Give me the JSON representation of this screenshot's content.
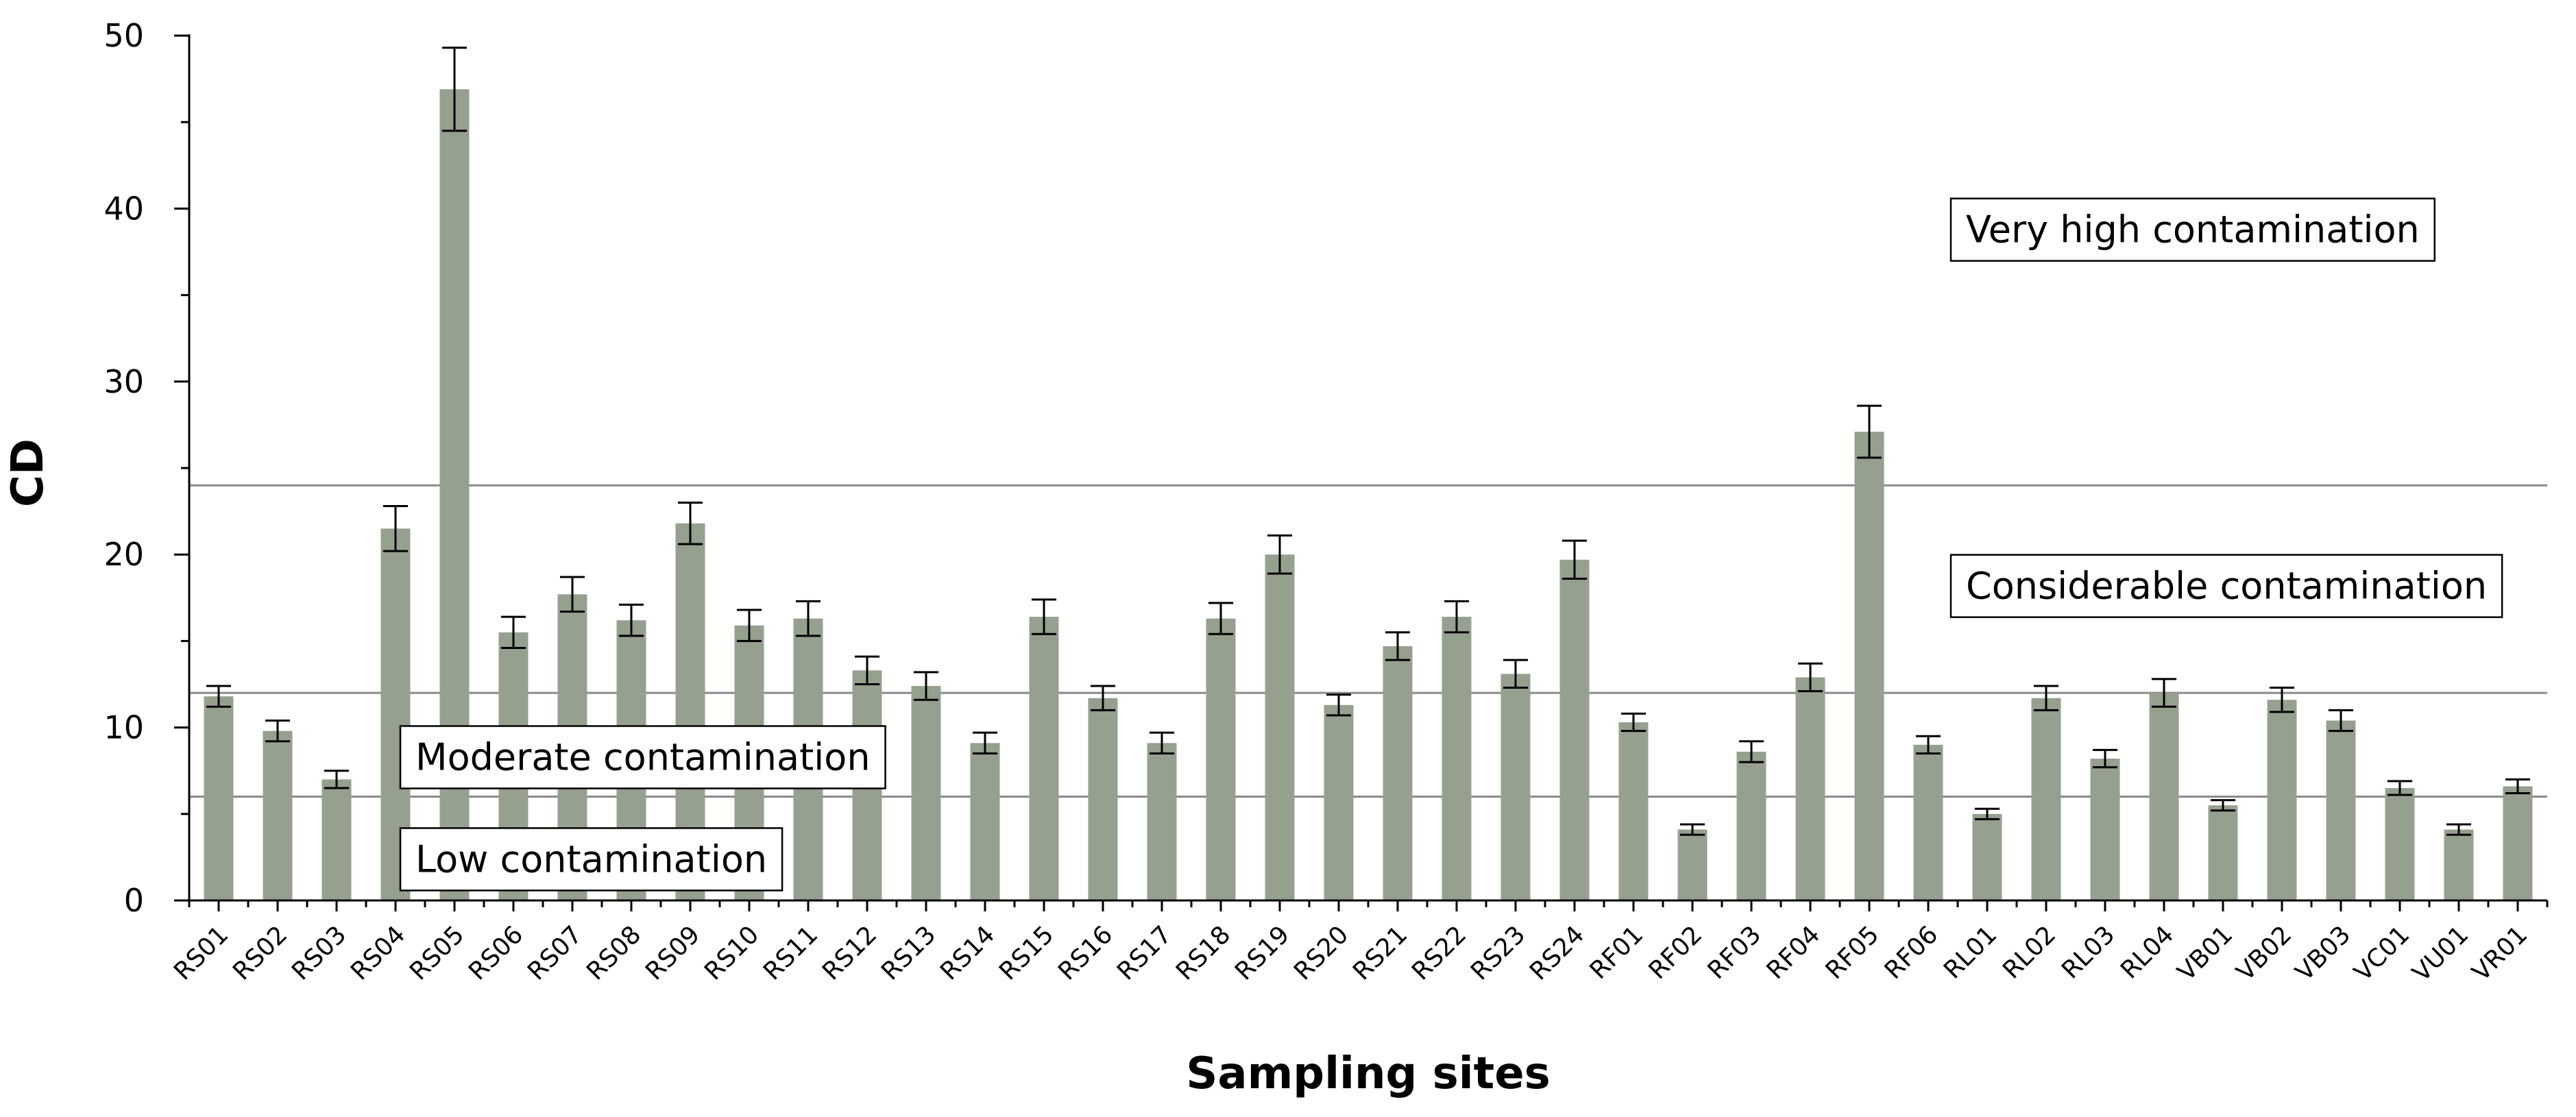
{
  "chart_data": {
    "type": "bar",
    "xlabel": "Sampling sites",
    "ylabel": "CD",
    "ylim": [
      0,
      50
    ],
    "yticks": [
      0,
      10,
      20,
      30,
      40,
      50
    ],
    "grid": false,
    "bar_color": "#96a08f",
    "categories": [
      "RS01",
      "RS02",
      "RS03",
      "RS04",
      "RS05",
      "RS06",
      "RS07",
      "RS08",
      "RS09",
      "RS10",
      "RS11",
      "RS12",
      "RS13",
      "RS14",
      "RS15",
      "RS16",
      "RS17",
      "RS18",
      "RS19",
      "RS20",
      "RS21",
      "RS22",
      "RS23",
      "RS24",
      "RF01",
      "RF02",
      "RF03",
      "RF04",
      "RF05",
      "RF06",
      "RL01",
      "RL02",
      "RL03",
      "RL04",
      "VB01",
      "VB02",
      "VB03",
      "VC01",
      "VU01",
      "VR01"
    ],
    "values": [
      11.8,
      9.8,
      7.0,
      21.5,
      46.9,
      15.5,
      17.7,
      16.2,
      21.8,
      15.9,
      16.3,
      13.3,
      12.4,
      9.1,
      16.4,
      11.7,
      9.1,
      16.3,
      20.0,
      11.3,
      14.7,
      16.4,
      13.1,
      19.7,
      10.3,
      4.1,
      8.6,
      12.9,
      27.1,
      9.0,
      5.0,
      11.7,
      8.2,
      12.0,
      5.5,
      11.6,
      10.4,
      6.5,
      4.1,
      6.6
    ],
    "errors": [
      0.6,
      0.6,
      0.5,
      1.3,
      2.4,
      0.9,
      1.0,
      0.9,
      1.2,
      0.9,
      1.0,
      0.8,
      0.8,
      0.6,
      1.0,
      0.7,
      0.6,
      0.9,
      1.1,
      0.6,
      0.8,
      0.9,
      0.8,
      1.1,
      0.5,
      0.3,
      0.6,
      0.8,
      1.5,
      0.5,
      0.3,
      0.7,
      0.5,
      0.8,
      0.3,
      0.7,
      0.6,
      0.4,
      0.3,
      0.4
    ],
    "thresholds": [
      6,
      12,
      24
    ],
    "annotations": [
      {
        "text": "Very high contamination",
        "y": 38.8
      },
      {
        "text": "Considerable contamination",
        "y": 18.2
      },
      {
        "text": "Moderate contamination",
        "y": 8.3
      },
      {
        "text": "Low contamination",
        "y": 2.4
      }
    ]
  }
}
